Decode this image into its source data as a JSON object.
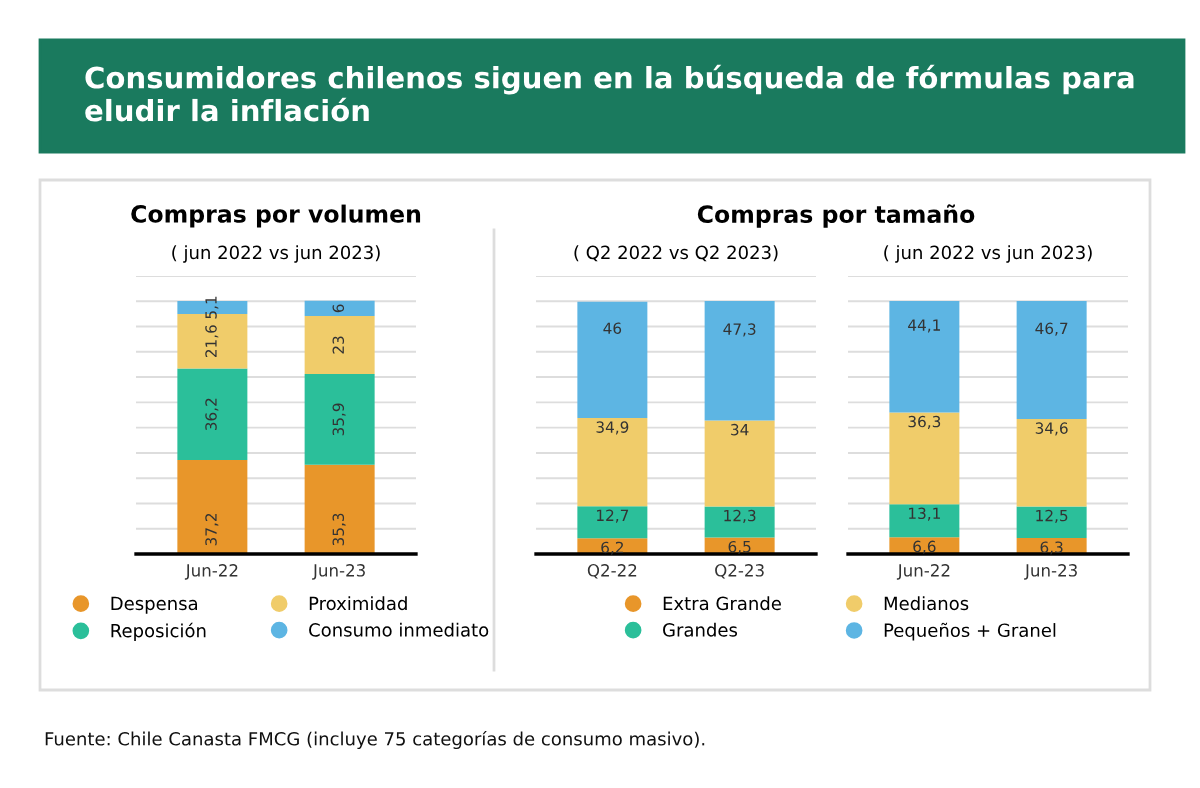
{
  "chart_data": [
    {
      "type": "bar",
      "stacked": true,
      "title": "Compras por volumen",
      "subtitle": "( jun 2022 vs jun 2023)",
      "categories": [
        "Jun-22",
        "Jun-23"
      ],
      "series": [
        {
          "name": "Despensa",
          "color": "#e8962a",
          "values": [
            37.2,
            35.3
          ],
          "value_labels": [
            "37,2",
            "35,3"
          ]
        },
        {
          "name": "Reposición",
          "color": "#2bbf9a",
          "values": [
            36.2,
            35.9
          ],
          "value_labels": [
            "36,2",
            "35,9"
          ]
        },
        {
          "name": "Proximidad",
          "color": "#f0cc6a",
          "values": [
            21.6,
            23
          ],
          "value_labels": [
            "21,6",
            "23"
          ]
        },
        {
          "name": "Consumo inmediato",
          "color": "#5db5e3",
          "values": [
            5.1,
            6
          ],
          "value_labels": [
            "5,1",
            "6"
          ]
        }
      ],
      "ylim": [
        0,
        110
      ],
      "yticks": [
        {
          "value": 0,
          "label": null
        },
        {
          "value": 10,
          "label": null
        },
        {
          "value": 20,
          "label": null
        },
        {
          "value": 30,
          "label": null
        },
        {
          "value": 40,
          "label": null
        },
        {
          "value": 50,
          "label": null
        },
        {
          "value": 60,
          "label": null
        },
        {
          "value": 70,
          "label": null
        },
        {
          "value": 80,
          "label": null
        },
        {
          "value": 90,
          "label": null
        },
        {
          "value": 100,
          "label": null
        },
        {
          "value": 110,
          "label": null
        }
      ],
      "tick_labels": "x",
      "grid": "y",
      "legend": "bottom",
      "annotations": [
        "Consumidores chilenos siguen en la búsqueda de fórmulas para eludir la inflación",
        "Fuente: Chile Canasta FMCG (incluye 75 categorías de consumo masivo)."
      ]
    },
    {
      "type": "bar",
      "stacked": true,
      "title": "Compras por tamaño",
      "subtitle": "( Q2 2022 vs Q2 2023)",
      "categories": [
        "Q2-22",
        "Q2-23"
      ],
      "series": [
        {
          "name": "Extra Grande",
          "color": "#e8962a",
          "values": [
            6.2,
            6.5
          ],
          "value_labels": [
            "6,2",
            "6,5"
          ]
        },
        {
          "name": "Grandes",
          "color": "#2bbf9a",
          "values": [
            12.7,
            12.3
          ],
          "value_labels": [
            "12,7",
            "12,3"
          ]
        },
        {
          "name": "Medianos",
          "color": "#f0cc6a",
          "values": [
            34.9,
            34
          ],
          "value_labels": [
            "34,9",
            "34"
          ]
        },
        {
          "name": "Pequeños + Granel",
          "color": "#5db5e3",
          "values": [
            46,
            47.3
          ],
          "value_labels": [
            "46",
            "47,3"
          ]
        }
      ],
      "ylim": [
        0,
        110
      ],
      "yticks": [
        {
          "value": 0,
          "label": null
        },
        {
          "value": 10,
          "label": null
        },
        {
          "value": 20,
          "label": null
        },
        {
          "value": 30,
          "label": null
        },
        {
          "value": 40,
          "label": null
        },
        {
          "value": 50,
          "label": null
        },
        {
          "value": 60,
          "label": null
        },
        {
          "value": 70,
          "label": null
        },
        {
          "value": 80,
          "label": null
        },
        {
          "value": 90,
          "label": null
        },
        {
          "value": 100,
          "label": null
        },
        {
          "value": 110,
          "label": null
        }
      ],
      "tick_labels": "x",
      "grid": "y",
      "legend": "bottom"
    },
    {
      "type": "bar",
      "stacked": true,
      "subtitle": "( jun 2022 vs jun 2023)",
      "categories": [
        "Jun-22",
        "Jun-23"
      ],
      "series": [
        {
          "color": "#e8962a",
          "values": [
            6.6,
            6.3
          ],
          "value_labels": [
            "6,6",
            "6,3"
          ]
        },
        {
          "color": "#2bbf9a",
          "values": [
            13.1,
            12.5
          ],
          "value_labels": [
            "13,1",
            "12,5"
          ]
        },
        {
          "color": "#f0cc6a",
          "values": [
            36.3,
            34.6
          ],
          "value_labels": [
            "36,3",
            "34,6"
          ]
        },
        {
          "color": "#5db5e3",
          "values": [
            44.1,
            46.7
          ],
          "value_labels": [
            "44,1",
            "46,7"
          ]
        }
      ],
      "ylim": [
        0,
        110
      ],
      "yticks": [
        {
          "value": 0,
          "label": null
        },
        {
          "value": 10,
          "label": null
        },
        {
          "value": 20,
          "label": null
        },
        {
          "value": 30,
          "label": null
        },
        {
          "value": 40,
          "label": null
        },
        {
          "value": 50,
          "label": null
        },
        {
          "value": 60,
          "label": null
        },
        {
          "value": 70,
          "label": null
        },
        {
          "value": 80,
          "label": null
        },
        {
          "value": 90,
          "label": null
        },
        {
          "value": 100,
          "label": null
        },
        {
          "value": 110,
          "label": null
        }
      ],
      "tick_labels": "x",
      "grid": "y"
    }
  ]
}
